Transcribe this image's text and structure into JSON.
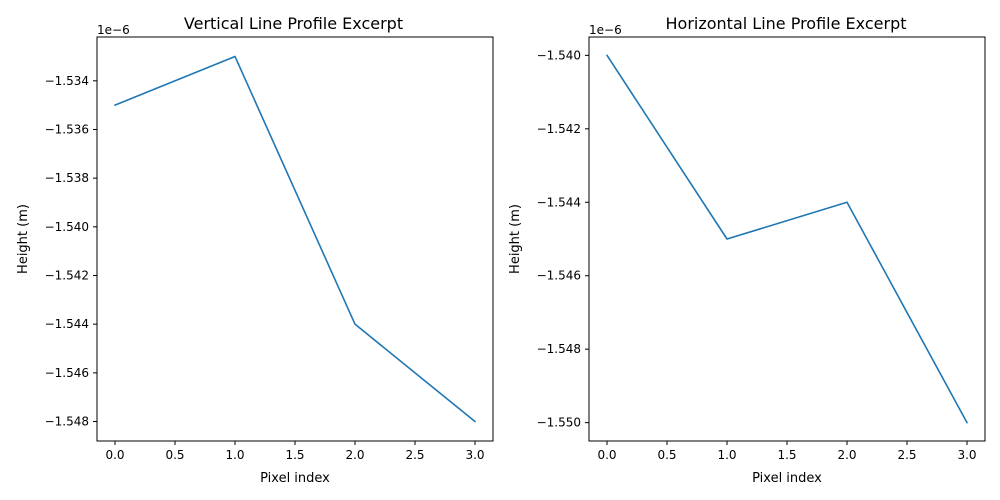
{
  "chart_data": [
    {
      "type": "line",
      "title": "Vertical Line Profile Excerpt",
      "xlabel": "Pixel index",
      "ylabel": "Height (m)",
      "y_offset_text": "1e−6",
      "x": [
        0,
        1,
        2,
        3
      ],
      "series": [
        {
          "values": [
            -1.535e-06,
            -1.533e-06,
            -1.544e-06,
            -1.548e-06
          ]
        }
      ],
      "xlim": [
        -0.15,
        3.15
      ],
      "ylim": [
        -1.5488e-06,
        -1.5322e-06
      ],
      "x_ticks": [
        0,
        0.5,
        1,
        1.5,
        2,
        2.5,
        3
      ],
      "x_tick_labels": [
        "0.0",
        "0.5",
        "1.0",
        "1.5",
        "2.0",
        "2.5",
        "3.0"
      ],
      "y_ticks": [
        -1.534e-06,
        -1.536e-06,
        -1.538e-06,
        -1.54e-06,
        -1.542e-06,
        -1.544e-06,
        -1.546e-06,
        -1.548e-06
      ],
      "y_tick_labels": [
        "−1.534",
        "−1.536",
        "−1.538",
        "−1.540",
        "−1.542",
        "−1.544",
        "−1.546",
        "−1.548"
      ],
      "grid": false,
      "line_color": "#1f77b4"
    },
    {
      "type": "line",
      "title": "Horizontal Line Profile Excerpt",
      "xlabel": "Pixel index",
      "ylabel": "Height (m)",
      "y_offset_text": "1e−6",
      "x": [
        0,
        1,
        2,
        3
      ],
      "series": [
        {
          "values": [
            -1.54e-06,
            -1.545e-06,
            -1.544e-06,
            -1.55e-06
          ]
        }
      ],
      "xlim": [
        -0.15,
        3.15
      ],
      "ylim": [
        -1.5505e-06,
        -1.5395e-06
      ],
      "x_ticks": [
        0,
        0.5,
        1,
        1.5,
        2,
        2.5,
        3
      ],
      "x_tick_labels": [
        "0.0",
        "0.5",
        "1.0",
        "1.5",
        "2.0",
        "2.5",
        "3.0"
      ],
      "y_ticks": [
        -1.54e-06,
        -1.542e-06,
        -1.544e-06,
        -1.546e-06,
        -1.548e-06,
        -1.55e-06
      ],
      "y_tick_labels": [
        "−1.540",
        "−1.542",
        "−1.544",
        "−1.546",
        "−1.548",
        "−1.550"
      ],
      "grid": false,
      "line_color": "#1f77b4"
    }
  ]
}
